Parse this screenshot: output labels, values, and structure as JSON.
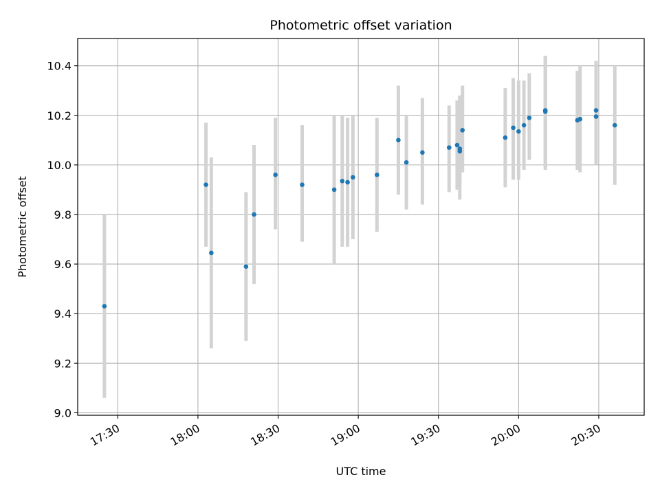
{
  "chart_data": {
    "type": "scatter",
    "title": "Photometric offset variation",
    "xlabel": "UTC time",
    "ylabel": "Photometric offset",
    "x_ticks": [
      "17:30",
      "18:00",
      "18:30",
      "19:00",
      "19:30",
      "20:00",
      "20:30"
    ],
    "y_ticks": [
      "9.0",
      "9.2",
      "9.4",
      "9.6",
      "9.8",
      "10.0",
      "10.2",
      "10.4"
    ],
    "xlim": [
      "17:15",
      "20:47"
    ],
    "ylim": [
      8.99,
      10.51
    ],
    "grid": true,
    "point_color": "#1f77b4",
    "errorbar_color": "#d3d3d3",
    "points": [
      {
        "t": "17:25",
        "y": 9.43,
        "low": 9.06,
        "high": 9.8
      },
      {
        "t": "18:03",
        "y": 9.92,
        "low": 9.67,
        "high": 10.17
      },
      {
        "t": "18:05",
        "y": 9.645,
        "low": 9.26,
        "high": 10.03
      },
      {
        "t": "18:18",
        "y": 9.59,
        "low": 9.29,
        "high": 9.89
      },
      {
        "t": "18:21",
        "y": 9.8,
        "low": 9.52,
        "high": 10.08
      },
      {
        "t": "18:29",
        "y": 9.96,
        "low": 9.74,
        "high": 10.19
      },
      {
        "t": "18:39",
        "y": 9.92,
        "low": 9.69,
        "high": 10.16
      },
      {
        "t": "18:51",
        "y": 9.9,
        "low": 9.6,
        "high": 10.2
      },
      {
        "t": "18:54",
        "y": 9.935,
        "low": 9.67,
        "high": 10.2
      },
      {
        "t": "18:56",
        "y": 9.93,
        "low": 9.67,
        "high": 10.19
      },
      {
        "t": "18:58",
        "y": 9.95,
        "low": 9.7,
        "high": 10.2
      },
      {
        "t": "19:07",
        "y": 9.96,
        "low": 9.73,
        "high": 10.19
      },
      {
        "t": "19:15",
        "y": 10.1,
        "low": 9.88,
        "high": 10.32
      },
      {
        "t": "19:18",
        "y": 10.01,
        "low": 9.82,
        "high": 10.2
      },
      {
        "t": "19:24",
        "y": 10.05,
        "low": 9.84,
        "high": 10.27
      },
      {
        "t": "19:34",
        "y": 10.07,
        "low": 9.89,
        "high": 10.24
      },
      {
        "t": "19:37",
        "y": 10.08,
        "low": 9.9,
        "high": 10.26
      },
      {
        "t": "19:38",
        "y": 10.055,
        "low": 9.92,
        "high": 10.27
      },
      {
        "t": "19:38",
        "y": 10.065,
        "low": 9.86,
        "high": 10.28
      },
      {
        "t": "19:39",
        "y": 10.14,
        "low": 9.97,
        "high": 10.32
      },
      {
        "t": "19:55",
        "y": 10.11,
        "low": 9.91,
        "high": 10.31
      },
      {
        "t": "19:58",
        "y": 10.15,
        "low": 9.94,
        "high": 10.35
      },
      {
        "t": "20:00",
        "y": 10.135,
        "low": 9.94,
        "high": 10.34
      },
      {
        "t": "20:02",
        "y": 10.16,
        "low": 9.98,
        "high": 10.34
      },
      {
        "t": "20:04",
        "y": 10.19,
        "low": 10.02,
        "high": 10.37
      },
      {
        "t": "20:10",
        "y": 10.215,
        "low": 9.99,
        "high": 10.44
      },
      {
        "t": "20:10",
        "y": 10.22,
        "low": 9.98,
        "high": 10.44
      },
      {
        "t": "20:22",
        "y": 10.18,
        "low": 9.98,
        "high": 10.38
      },
      {
        "t": "20:23",
        "y": 10.185,
        "low": 9.97,
        "high": 10.4
      },
      {
        "t": "20:29",
        "y": 10.195,
        "low": 10.0,
        "high": 10.39
      },
      {
        "t": "20:29",
        "y": 10.22,
        "low": 10.01,
        "high": 10.42
      },
      {
        "t": "20:36",
        "y": 10.16,
        "low": 9.92,
        "high": 10.4
      }
    ]
  }
}
